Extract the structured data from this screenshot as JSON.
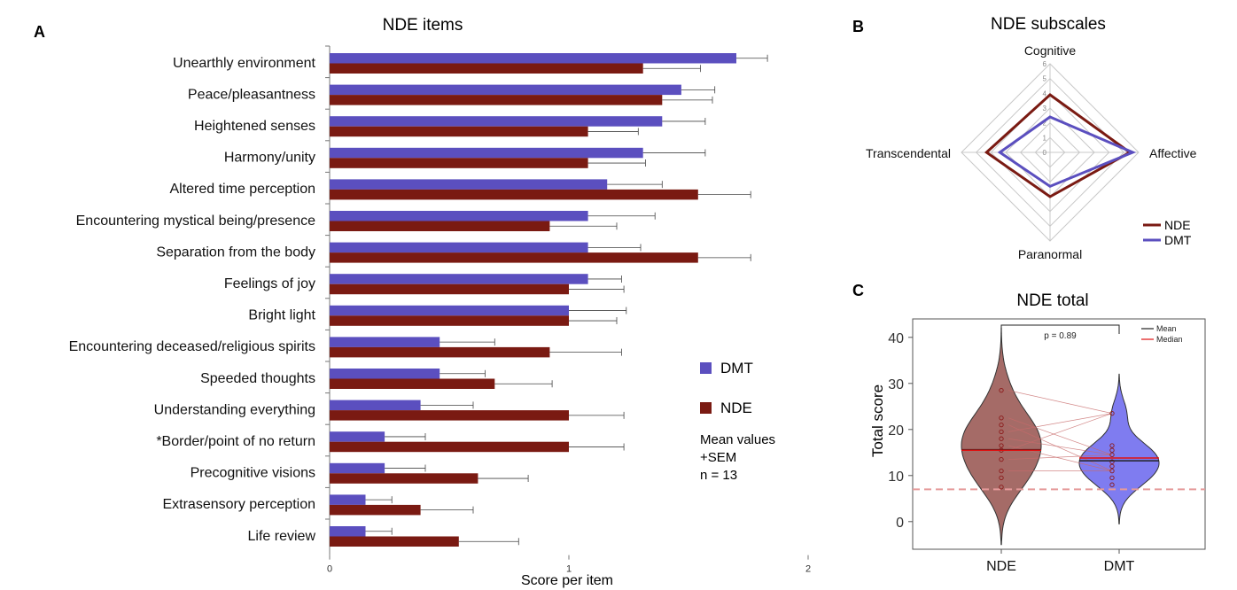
{
  "colors": {
    "dmt": "#5B4FBF",
    "nde": "#7A1A12",
    "nde_violin": "#A56B67",
    "dmt_violin": "#7F7CF0",
    "median": "#E01010",
    "mean": "#222222",
    "threshold": "#E59A9A"
  },
  "panels": {
    "A": {
      "letter": "A",
      "notes": [
        "Mean values",
        "+SEM",
        "n = 13"
      ]
    },
    "B": {
      "letter": "B"
    },
    "C": {
      "letter": "C",
      "p_text": "p = 0.89"
    }
  },
  "chart_data": [
    {
      "type": "bar",
      "title": "NDE items",
      "xlabel": "Score per item",
      "xlim": [
        0,
        2
      ],
      "xticks": [
        "0",
        "1",
        "2"
      ],
      "categories": [
        "Unearthly environment",
        "Peace/pleasantness",
        "Heightened senses",
        "Harmony/unity",
        "Altered time perception",
        "Encountering mystical being/presence",
        "Separation from the body",
        "Feelings of joy",
        "Bright light",
        "Encountering deceased/religious spirits",
        "Speeded thoughts",
        "Understanding everything",
        "*Border/point of no return",
        "Precognitive visions",
        "Extrasensory perception",
        "Life review"
      ],
      "series": [
        {
          "name": "DMT",
          "values": [
            1.7,
            1.47,
            1.39,
            1.31,
            1.16,
            1.08,
            1.08,
            1.08,
            1.0,
            0.46,
            0.46,
            0.38,
            0.23,
            0.23,
            0.15,
            0.15
          ],
          "sem": [
            0.13,
            0.14,
            0.18,
            0.26,
            0.23,
            0.28,
            0.22,
            0.14,
            0.24,
            0.23,
            0.19,
            0.22,
            0.17,
            0.17,
            0.11,
            0.11
          ]
        },
        {
          "name": "NDE",
          "values": [
            1.31,
            1.39,
            1.08,
            1.08,
            1.54,
            0.92,
            1.54,
            1.0,
            1.0,
            0.92,
            0.69,
            1.0,
            1.0,
            0.62,
            0.38,
            0.54
          ],
          "sem": [
            0.24,
            0.21,
            0.21,
            0.24,
            0.22,
            0.28,
            0.22,
            0.23,
            0.2,
            0.3,
            0.24,
            0.23,
            0.23,
            0.21,
            0.22,
            0.25
          ]
        }
      ],
      "legend_position": "right"
    },
    {
      "type": "radar",
      "title": "NDE subscales",
      "axes": [
        "Cognitive",
        "Affective",
        "Paranormal",
        "Transcendental"
      ],
      "rlim": [
        0,
        6
      ],
      "rticks": [
        "0",
        "1",
        "2",
        "3",
        "4",
        "5",
        "6"
      ],
      "series": [
        {
          "name": "NDE",
          "values": [
            3.9,
            5.4,
            3.0,
            4.3
          ]
        },
        {
          "name": "DMT",
          "values": [
            2.4,
            5.6,
            2.3,
            3.4
          ]
        }
      ],
      "legend_position": "bottom-right"
    },
    {
      "type": "violin",
      "title": "NDE total",
      "ylabel": "Total score",
      "ylim": [
        -6,
        44
      ],
      "yticks": [
        0,
        10,
        20,
        30,
        40
      ],
      "categories": [
        "NDE",
        "DMT"
      ],
      "threshold": 7,
      "legend": [
        "Mean",
        "Median"
      ],
      "groups": [
        {
          "name": "NDE",
          "mean": 15.6,
          "median": 15.5,
          "points": [
            28.5,
            22.5,
            21,
            19.5,
            18,
            16.5,
            15.5,
            13.5,
            11,
            9.5,
            7.5
          ]
        },
        {
          "name": "DMT",
          "mean": 13.2,
          "median": 13.8,
          "points": [
            23.5,
            16.5,
            15.5,
            14.5,
            13,
            12,
            11,
            9.5,
            8
          ]
        }
      ]
    }
  ]
}
